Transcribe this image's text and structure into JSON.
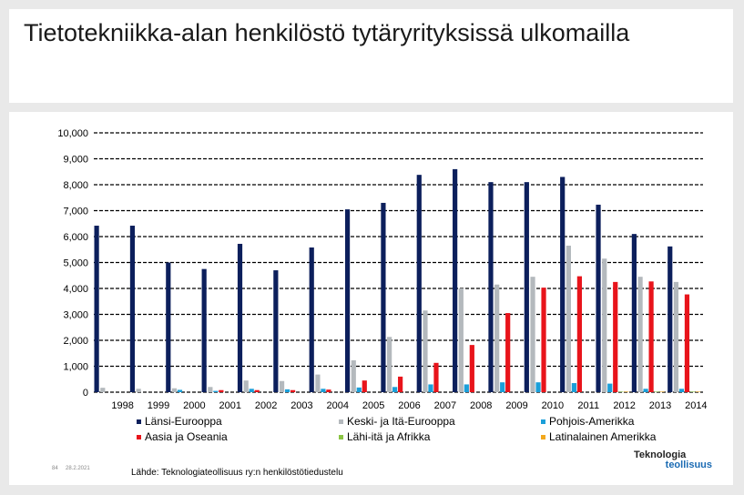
{
  "header": {
    "title": "Tietotekniikka-alan henkilöstö tytäryrityksissä ulkomailla"
  },
  "footer": {
    "page_number": "84",
    "date": "28.2.2021",
    "source": "Lähde: Teknologiateollisuus ry:n henkilöstötiedustelu",
    "logo_line1": "Teknologia",
    "logo_line2": "teollisuus"
  },
  "chart_data": {
    "type": "bar",
    "title": "Tietotekniikka-alan henkilöstö tytäryrityksissä ulkomailla",
    "xlabel": "",
    "ylabel": "",
    "ylim": [
      0,
      10000
    ],
    "yticks": [
      0,
      1000,
      2000,
      3000,
      4000,
      5000,
      6000,
      7000,
      8000,
      9000,
      10000
    ],
    "ytick_labels": [
      "0",
      "1,000",
      "2,000",
      "3,000",
      "4,000",
      "5,000",
      "6,000",
      "7,000",
      "8,000",
      "9,000",
      "10,000"
    ],
    "grid": true,
    "legend_position": "bottom",
    "categories": [
      "1998",
      "1999",
      "2000",
      "2001",
      "2002",
      "2003",
      "2004",
      "2005",
      "2006",
      "2007",
      "2008",
      "2009",
      "2010",
      "2011",
      "2012",
      "2013",
      "2014"
    ],
    "series": [
      {
        "name": "Länsi-Eurooppa",
        "color": "#0c1f5c",
        "values": [
          6420,
          6420,
          5000,
          4750,
          5720,
          4700,
          5580,
          7050,
          7300,
          8380,
          8600,
          8100,
          8100,
          8300,
          7230,
          6100,
          5620
        ]
      },
      {
        "name": "Keski- ja Itä-Eurooppa",
        "color": "#b4b9bd",
        "values": [
          170,
          130,
          150,
          200,
          450,
          430,
          680,
          1230,
          2130,
          3150,
          4000,
          4150,
          4450,
          5650,
          5150,
          4450,
          4250
        ]
      },
      {
        "name": "Pohjois-Amerikka",
        "color": "#1b9fd9",
        "values": [
          0,
          0,
          90,
          50,
          130,
          110,
          130,
          180,
          200,
          300,
          300,
          380,
          380,
          350,
          330,
          130,
          130
        ]
      },
      {
        "name": "Aasia ja Oseania",
        "color": "#e8141b",
        "values": [
          0,
          0,
          0,
          80,
          80,
          80,
          100,
          450,
          600,
          1130,
          1820,
          3050,
          4030,
          4470,
          4250,
          4270,
          3770
        ]
      },
      {
        "name": "Lähi-itä ja Afrikka",
        "color": "#8ac443",
        "values": [
          0,
          0,
          0,
          0,
          0,
          0,
          0,
          0,
          0,
          0,
          0,
          0,
          0,
          0,
          20,
          20,
          20
        ]
      },
      {
        "name": "Latinalainen Amerikka",
        "color": "#f3a81d",
        "values": [
          0,
          0,
          0,
          0,
          0,
          0,
          0,
          0,
          0,
          0,
          0,
          0,
          0,
          0,
          20,
          20,
          20
        ]
      }
    ]
  }
}
